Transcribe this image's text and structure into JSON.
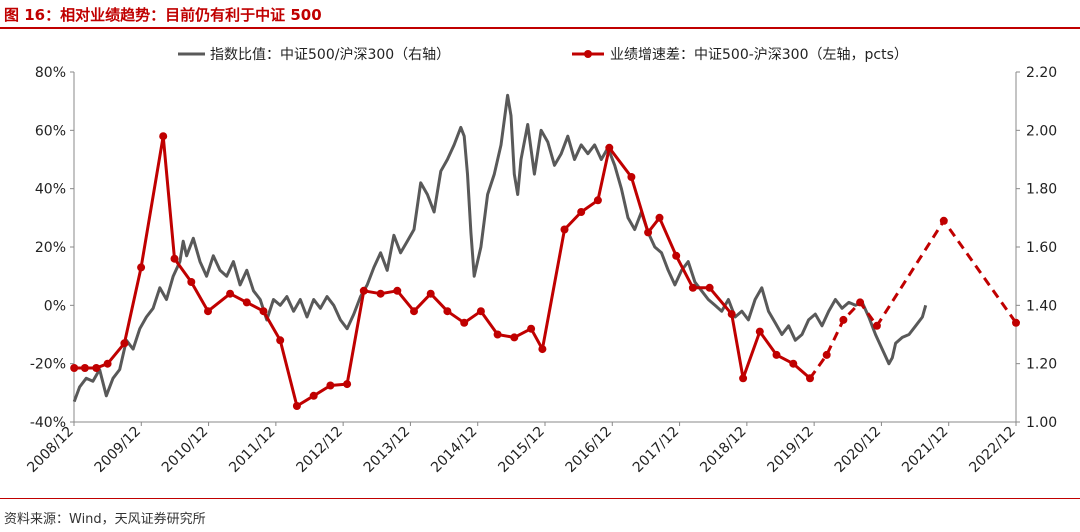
{
  "title": "图 16：相对业绩趋势：目前仍有利于中证 500",
  "source": "资料来源：Wind，天风证券研究所",
  "colors": {
    "ratio": "#595959",
    "growth": "#c00000",
    "accent": "#c00000"
  },
  "chart_data": {
    "type": "line",
    "x_ticks": [
      "2008/12",
      "2009/12",
      "2010/12",
      "2011/12",
      "2012/12",
      "2013/12",
      "2014/12",
      "2015/12",
      "2016/12",
      "2017/12",
      "2018/12",
      "2019/12",
      "2020/12",
      "2021/12",
      "2022/12"
    ],
    "x_range": [
      2008.917,
      2023.0
    ],
    "y_left": {
      "ticks": [
        "80%",
        "60%",
        "40%",
        "20%",
        "0%",
        "-20%",
        "-40%"
      ],
      "range": [
        -40,
        80
      ]
    },
    "y_right": {
      "ticks": [
        "2.20",
        "2.00",
        "1.80",
        "1.60",
        "1.40",
        "1.20",
        "1.00"
      ],
      "range": [
        1.0,
        2.2
      ]
    },
    "grid": false,
    "legend_position": "top",
    "series": [
      {
        "name": "指数比值：中证500/沪深300（右轴）",
        "axis": "right",
        "style": "solid",
        "points": [
          [
            2008.92,
            1.07
          ],
          [
            2009.0,
            1.12
          ],
          [
            2009.1,
            1.15
          ],
          [
            2009.2,
            1.14
          ],
          [
            2009.3,
            1.18
          ],
          [
            2009.4,
            1.09
          ],
          [
            2009.5,
            1.15
          ],
          [
            2009.6,
            1.18
          ],
          [
            2009.7,
            1.28
          ],
          [
            2009.8,
            1.25
          ],
          [
            2009.9,
            1.32
          ],
          [
            2010.0,
            1.36
          ],
          [
            2010.1,
            1.39
          ],
          [
            2010.2,
            1.46
          ],
          [
            2010.3,
            1.42
          ],
          [
            2010.4,
            1.5
          ],
          [
            2010.5,
            1.55
          ],
          [
            2010.55,
            1.62
          ],
          [
            2010.6,
            1.57
          ],
          [
            2010.7,
            1.63
          ],
          [
            2010.8,
            1.55
          ],
          [
            2010.9,
            1.5
          ],
          [
            2011.0,
            1.57
          ],
          [
            2011.1,
            1.52
          ],
          [
            2011.2,
            1.5
          ],
          [
            2011.3,
            1.55
          ],
          [
            2011.4,
            1.47
          ],
          [
            2011.5,
            1.52
          ],
          [
            2011.6,
            1.45
          ],
          [
            2011.7,
            1.42
          ],
          [
            2011.8,
            1.35
          ],
          [
            2011.9,
            1.42
          ],
          [
            2012.0,
            1.4
          ],
          [
            2012.1,
            1.43
          ],
          [
            2012.2,
            1.38
          ],
          [
            2012.3,
            1.42
          ],
          [
            2012.4,
            1.36
          ],
          [
            2012.5,
            1.42
          ],
          [
            2012.6,
            1.39
          ],
          [
            2012.7,
            1.43
          ],
          [
            2012.8,
            1.4
          ],
          [
            2012.9,
            1.35
          ],
          [
            2013.0,
            1.32
          ],
          [
            2013.1,
            1.37
          ],
          [
            2013.2,
            1.43
          ],
          [
            2013.3,
            1.47
          ],
          [
            2013.4,
            1.53
          ],
          [
            2013.5,
            1.58
          ],
          [
            2013.6,
            1.52
          ],
          [
            2013.7,
            1.64
          ],
          [
            2013.8,
            1.58
          ],
          [
            2013.9,
            1.62
          ],
          [
            2014.0,
            1.66
          ],
          [
            2014.1,
            1.82
          ],
          [
            2014.2,
            1.78
          ],
          [
            2014.3,
            1.72
          ],
          [
            2014.4,
            1.86
          ],
          [
            2014.5,
            1.9
          ],
          [
            2014.6,
            1.95
          ],
          [
            2014.7,
            2.01
          ],
          [
            2014.75,
            1.98
          ],
          [
            2014.8,
            1.85
          ],
          [
            2014.85,
            1.65
          ],
          [
            2014.9,
            1.5
          ],
          [
            2015.0,
            1.6
          ],
          [
            2015.1,
            1.78
          ],
          [
            2015.2,
            1.85
          ],
          [
            2015.3,
            1.95
          ],
          [
            2015.4,
            2.12
          ],
          [
            2015.45,
            2.05
          ],
          [
            2015.5,
            1.85
          ],
          [
            2015.55,
            1.78
          ],
          [
            2015.6,
            1.9
          ],
          [
            2015.7,
            2.02
          ],
          [
            2015.8,
            1.85
          ],
          [
            2015.9,
            2.0
          ],
          [
            2016.0,
            1.96
          ],
          [
            2016.1,
            1.88
          ],
          [
            2016.2,
            1.92
          ],
          [
            2016.3,
            1.98
          ],
          [
            2016.4,
            1.9
          ],
          [
            2016.5,
            1.95
          ],
          [
            2016.6,
            1.92
          ],
          [
            2016.7,
            1.95
          ],
          [
            2016.8,
            1.9
          ],
          [
            2016.9,
            1.94
          ],
          [
            2017.0,
            1.88
          ],
          [
            2017.1,
            1.8
          ],
          [
            2017.2,
            1.7
          ],
          [
            2017.3,
            1.66
          ],
          [
            2017.4,
            1.72
          ],
          [
            2017.5,
            1.65
          ],
          [
            2017.6,
            1.6
          ],
          [
            2017.7,
            1.58
          ],
          [
            2017.8,
            1.52
          ],
          [
            2017.9,
            1.47
          ],
          [
            2018.0,
            1.52
          ],
          [
            2018.1,
            1.55
          ],
          [
            2018.2,
            1.48
          ],
          [
            2018.3,
            1.45
          ],
          [
            2018.4,
            1.42
          ],
          [
            2018.5,
            1.4
          ],
          [
            2018.6,
            1.38
          ],
          [
            2018.7,
            1.42
          ],
          [
            2018.8,
            1.36
          ],
          [
            2018.9,
            1.38
          ],
          [
            2019.0,
            1.35
          ],
          [
            2019.1,
            1.42
          ],
          [
            2019.2,
            1.46
          ],
          [
            2019.3,
            1.38
          ],
          [
            2019.4,
            1.34
          ],
          [
            2019.5,
            1.3
          ],
          [
            2019.6,
            1.33
          ],
          [
            2019.7,
            1.28
          ],
          [
            2019.8,
            1.3
          ],
          [
            2019.9,
            1.35
          ],
          [
            2020.0,
            1.37
          ],
          [
            2020.1,
            1.33
          ],
          [
            2020.2,
            1.38
          ],
          [
            2020.3,
            1.42
          ],
          [
            2020.4,
            1.39
          ],
          [
            2020.5,
            1.41
          ],
          [
            2020.6,
            1.4
          ],
          [
            2020.7,
            1.41
          ],
          [
            2020.8,
            1.36
          ],
          [
            2020.9,
            1.3
          ],
          [
            2021.0,
            1.25
          ],
          [
            2021.1,
            1.2
          ],
          [
            2021.15,
            1.22
          ],
          [
            2021.2,
            1.27
          ],
          [
            2021.3,
            1.29
          ],
          [
            2021.4,
            1.3
          ],
          [
            2021.5,
            1.33
          ],
          [
            2021.6,
            1.36
          ],
          [
            2021.65,
            1.4
          ]
        ]
      },
      {
        "name": "业绩增速差：中证500-沪深300（左轴，pcts）",
        "axis": "left",
        "style": "solid-then-dashed",
        "dashed_from_index": 45,
        "points": [
          [
            2008.92,
            -21.5
          ],
          [
            2009.08,
            -21.5
          ],
          [
            2009.25,
            -21.5
          ],
          [
            2009.42,
            -20
          ],
          [
            2009.67,
            -13
          ],
          [
            2009.92,
            13
          ],
          [
            2010.25,
            58
          ],
          [
            2010.42,
            16
          ],
          [
            2010.67,
            8
          ],
          [
            2010.92,
            -2
          ],
          [
            2011.25,
            4
          ],
          [
            2011.5,
            1
          ],
          [
            2011.75,
            -2
          ],
          [
            2012.0,
            -12
          ],
          [
            2012.25,
            -34.5
          ],
          [
            2012.5,
            -31
          ],
          [
            2012.75,
            -27.5
          ],
          [
            2013.0,
            -27
          ],
          [
            2013.25,
            5
          ],
          [
            2013.5,
            4
          ],
          [
            2013.75,
            5
          ],
          [
            2014.0,
            -2
          ],
          [
            2014.25,
            4
          ],
          [
            2014.5,
            -2
          ],
          [
            2014.75,
            -6
          ],
          [
            2015.0,
            -2
          ],
          [
            2015.25,
            -10
          ],
          [
            2015.5,
            -11
          ],
          [
            2015.75,
            -8
          ],
          [
            2015.92,
            -15
          ],
          [
            2016.25,
            26
          ],
          [
            2016.5,
            32
          ],
          [
            2016.75,
            36
          ],
          [
            2016.92,
            54
          ],
          [
            2017.25,
            44
          ],
          [
            2017.5,
            25
          ],
          [
            2017.67,
            30
          ],
          [
            2017.92,
            17
          ],
          [
            2018.17,
            6
          ],
          [
            2018.42,
            6
          ],
          [
            2018.75,
            -3
          ],
          [
            2018.92,
            -25
          ],
          [
            2019.17,
            -9
          ],
          [
            2019.42,
            -17
          ],
          [
            2019.67,
            -20
          ],
          [
            2019.92,
            -25
          ],
          [
            2020.17,
            -17
          ],
          [
            2020.42,
            -5
          ],
          [
            2020.67,
            1
          ],
          [
            2020.92,
            -7
          ],
          [
            2021.92,
            29
          ],
          [
            2023.0,
            -6
          ]
        ]
      }
    ]
  }
}
